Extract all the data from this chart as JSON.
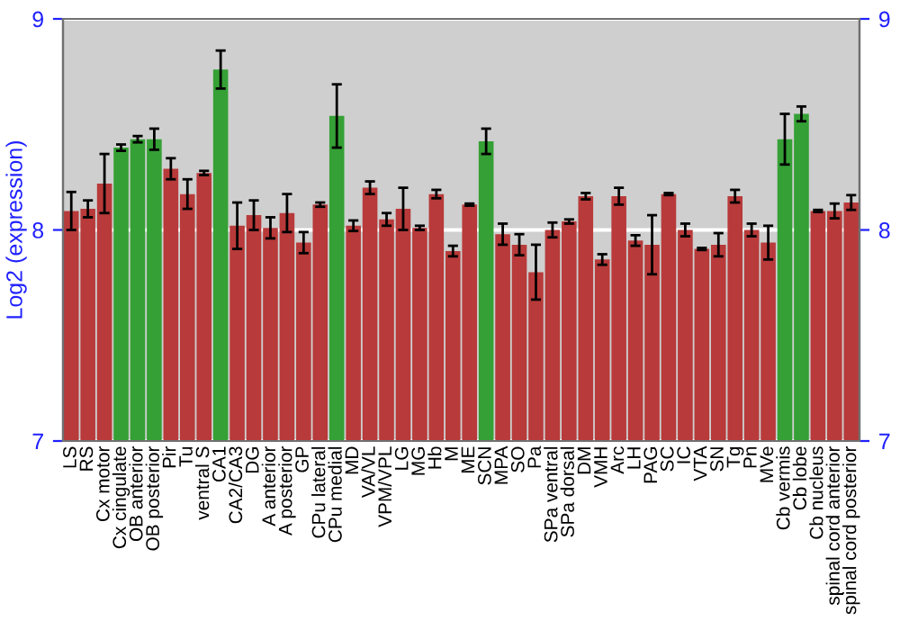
{
  "chart_data": {
    "type": "bar",
    "ylabel": "Log2 (expression)",
    "categories": [
      "LS",
      "RS",
      "Cx motor",
      "Cx cingulate",
      "OB anterior",
      "OB posterior",
      "Pir",
      "Tu",
      "ventral S",
      "CA1",
      "CA2/CA3",
      "DG",
      "A anterior",
      "A posterior",
      "GP",
      "CPu lateral",
      "CPu medial",
      "MD",
      "VA/VL",
      "VPM/VPL",
      "LG",
      "MG",
      "Hb",
      "M",
      "ME",
      "SCN",
      "MPA",
      "SO",
      "Pa",
      "SPa ventral",
      "SPa dorsal",
      "DM",
      "VMH",
      "Arc",
      "LH",
      "PAG",
      "SC",
      "IC",
      "VTA",
      "SN",
      "Tg",
      "Pn",
      "MVe",
      "Cb vermis",
      "Cb lobe",
      "Cb nucleus",
      "spinal cord anterior",
      "spinal cord posterior"
    ],
    "values": [
      8.09,
      8.1,
      8.22,
      8.39,
      8.43,
      8.43,
      8.29,
      8.17,
      8.27,
      8.76,
      8.02,
      8.07,
      8.01,
      8.08,
      7.94,
      8.12,
      8.54,
      8.02,
      8.2,
      8.05,
      8.1,
      8.01,
      8.17,
      7.9,
      8.12,
      8.42,
      7.98,
      7.93,
      7.8,
      8.0,
      8.04,
      8.16,
      7.86,
      8.16,
      7.95,
      7.93,
      8.17,
      8.0,
      7.91,
      7.93,
      8.16,
      8.0,
      7.94,
      8.43,
      8.55,
      8.09,
      8.09,
      8.13
    ],
    "errors": [
      0.09,
      0.04,
      0.14,
      0.015,
      0.015,
      0.05,
      0.05,
      0.07,
      0.01,
      0.09,
      0.11,
      0.07,
      0.05,
      0.09,
      0.05,
      0.01,
      0.15,
      0.025,
      0.03,
      0.03,
      0.1,
      0.01,
      0.02,
      0.025,
      0.005,
      0.06,
      0.05,
      0.05,
      0.13,
      0.035,
      0.01,
      0.015,
      0.025,
      0.04,
      0.025,
      0.14,
      0.005,
      0.03,
      0.005,
      0.055,
      0.03,
      0.03,
      0.08,
      0.12,
      0.035,
      0.005,
      0.035,
      0.035
    ],
    "colors": [
      "#b83a3a",
      "#b83a3a",
      "#b83a3a",
      "#35a035",
      "#35a035",
      "#35a035",
      "#b83a3a",
      "#b83a3a",
      "#b83a3a",
      "#35a035",
      "#b83a3a",
      "#b83a3a",
      "#b83a3a",
      "#b83a3a",
      "#b83a3a",
      "#b83a3a",
      "#35a035",
      "#b83a3a",
      "#b83a3a",
      "#b83a3a",
      "#b83a3a",
      "#b83a3a",
      "#b83a3a",
      "#b83a3a",
      "#b83a3a",
      "#35a035",
      "#b83a3a",
      "#b83a3a",
      "#b83a3a",
      "#b83a3a",
      "#b83a3a",
      "#b83a3a",
      "#b83a3a",
      "#b83a3a",
      "#b83a3a",
      "#b83a3a",
      "#b83a3a",
      "#b83a3a",
      "#b83a3a",
      "#b83a3a",
      "#b83a3a",
      "#b83a3a",
      "#b83a3a",
      "#35a035",
      "#35a035",
      "#b83a3a",
      "#b83a3a",
      "#b83a3a"
    ],
    "ylim": [
      7,
      9
    ],
    "yticks": [
      7,
      8,
      9
    ],
    "y2lim": [
      7,
      9
    ],
    "y2ticks": [
      7,
      8,
      9
    ],
    "grid": "y"
  }
}
